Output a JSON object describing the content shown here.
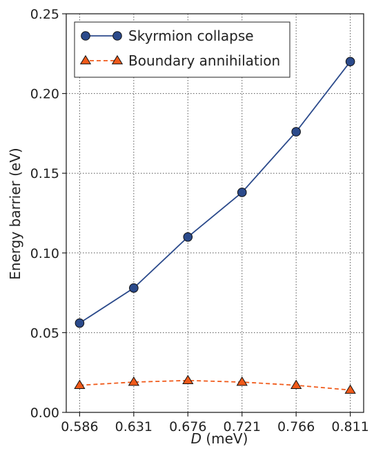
{
  "chart_data": {
    "type": "line",
    "x": [
      0.586,
      0.631,
      0.676,
      0.721,
      0.766,
      0.811
    ],
    "x_tick_labels": [
      "0.586",
      "0.631",
      "0.676",
      "0.721",
      "0.766",
      "0.811"
    ],
    "xlabel_var": "D",
    "xlabel_unit": " (meV)",
    "ylabel": "Energy barrier (eV)",
    "ylim": [
      0,
      0.25
    ],
    "y_ticks": [
      0,
      0.05,
      0.1,
      0.15,
      0.2,
      0.25
    ],
    "y_tick_labels": [
      "0.00",
      "0.05",
      "0.10",
      "0.15",
      "0.20",
      "0.25"
    ],
    "grid": true,
    "legend_position": "top-left",
    "series": [
      {
        "name": "Skyrmion collapse",
        "values": [
          0.056,
          0.078,
          0.11,
          0.138,
          0.176,
          0.22
        ],
        "color": "#2b4a8b",
        "line_style": "solid",
        "marker": "circle"
      },
      {
        "name": "Boundary annihilation",
        "values": [
          0.017,
          0.019,
          0.02,
          0.019,
          0.017,
          0.014
        ],
        "color": "#f05a1a",
        "line_style": "dashed",
        "marker": "triangle"
      }
    ]
  }
}
